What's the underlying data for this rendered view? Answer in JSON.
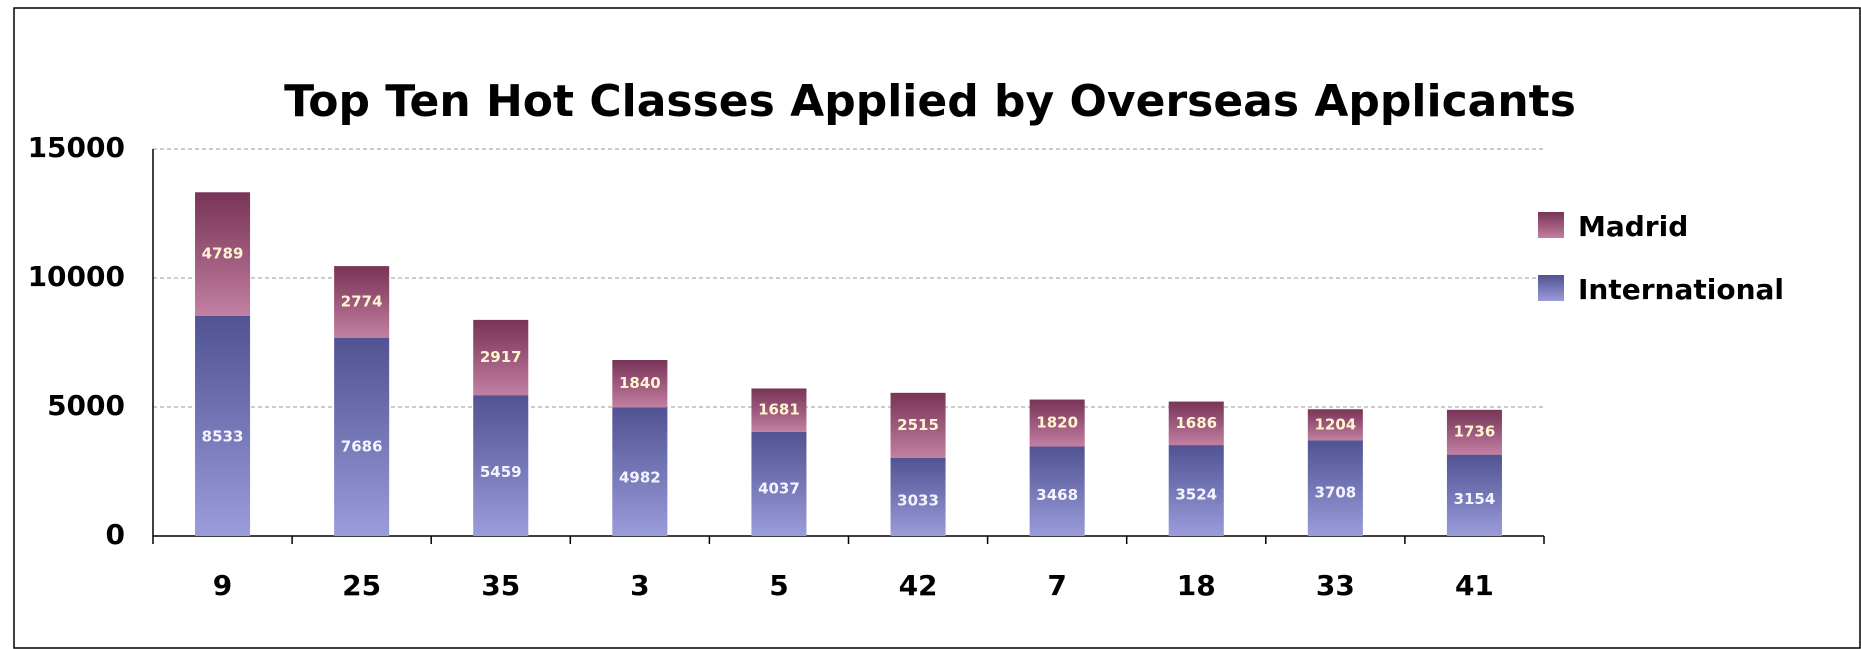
{
  "chart_data": {
    "type": "stacked-bar",
    "title": "Top Ten Hot Classes Applied by Overseas Applicants",
    "categories": [
      "9",
      "25",
      "35",
      "3",
      "5",
      "42",
      "7",
      "18",
      "33",
      "41"
    ],
    "series": [
      {
        "name": "International",
        "color": "#7073cc",
        "values": [
          8533,
          7686,
          5459,
          4982,
          4037,
          3033,
          3468,
          3524,
          3708,
          3154
        ]
      },
      {
        "name": "Madrid",
        "color": "#a8497a",
        "values": [
          4789,
          2774,
          2917,
          1840,
          1681,
          2515,
          1820,
          1686,
          1204,
          1736
        ]
      }
    ],
    "ylim": [
      0,
      15000
    ],
    "yticks": [
      0,
      5000,
      10000,
      15000
    ],
    "grid": true,
    "legend": "right"
  }
}
